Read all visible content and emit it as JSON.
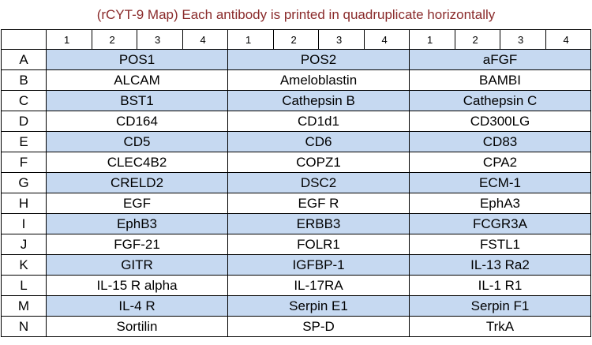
{
  "title": "(rCYT-9 Map) Each antibody is printed in quadruplicate horizontally",
  "table": {
    "header": [
      "1",
      "2",
      "3",
      "4",
      "1",
      "2",
      "3",
      "4",
      "1",
      "2",
      "3",
      "4"
    ],
    "rows": [
      [
        "A",
        "POS1",
        "POS2",
        "aFGF"
      ],
      [
        "B",
        "ALCAM",
        "Ameloblastin",
        "BAMBI"
      ],
      [
        "C",
        "BST1",
        "Cathepsin B",
        "Cathepsin C"
      ],
      [
        "D",
        "CD164",
        "CD1d1",
        "CD300LG"
      ],
      [
        "E",
        "CD5",
        "CD6",
        "CD83"
      ],
      [
        "F",
        "CLEC4B2",
        "COPZ1",
        "CPA2"
      ],
      [
        "G",
        "CRELD2",
        "DSC2",
        "ECM-1"
      ],
      [
        "H",
        "EGF",
        "EGF R",
        "EphA3"
      ],
      [
        "I",
        "EphB3",
        "ERBB3",
        "FCGR3A"
      ],
      [
        "J",
        "FGF-21",
        "FOLR1",
        "FSTL1"
      ],
      [
        "K",
        "GITR",
        "IGFBP-1",
        "IL-13 Ra2"
      ],
      [
        "L",
        "IL-15 R alpha",
        "IL-17RA",
        "IL-1 R1"
      ],
      [
        "M",
        "IL-4 R",
        "Serpin E1",
        "Serpin F1"
      ],
      [
        "N",
        "Sortilin",
        "SP-D",
        "TrkA"
      ]
    ]
  }
}
